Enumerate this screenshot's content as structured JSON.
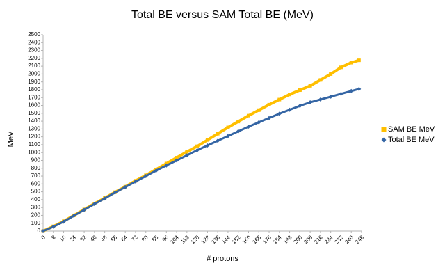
{
  "chart_data": {
    "type": "line",
    "title": "Total BE versus SAM Total BE (MeV)",
    "x_label": "# protons",
    "y_label": "MeV",
    "x": [
      0,
      8,
      16,
      24,
      32,
      40,
      48,
      56,
      64,
      72,
      80,
      88,
      96,
      104,
      112,
      120,
      128,
      136,
      144,
      152,
      160,
      168,
      176,
      184,
      192,
      200,
      208,
      216,
      224,
      232,
      240,
      246
    ],
    "series": [
      {
        "name": "SAM BE MeV",
        "color": "#ffbf00",
        "marker": "square",
        "values": [
          0,
          60,
          125,
          200,
          275,
          350,
          420,
          495,
          565,
          640,
          710,
          785,
          860,
          935,
          1010,
          1080,
          1160,
          1240,
          1320,
          1395,
          1470,
          1540,
          1610,
          1675,
          1740,
          1795,
          1850,
          1925,
          2000,
          2085,
          2145,
          2175
        ]
      },
      {
        "name": "Total BE MeV",
        "color": "#3465a4",
        "marker": "diamond",
        "values": [
          0,
          55,
          120,
          195,
          270,
          345,
          415,
          490,
          560,
          630,
          700,
          770,
          835,
          900,
          965,
          1030,
          1090,
          1150,
          1210,
          1270,
          1330,
          1385,
          1440,
          1495,
          1545,
          1595,
          1640,
          1676,
          1712,
          1748,
          1784,
          1810
        ]
      }
    ],
    "xlim": [
      0,
      248
    ],
    "xticks": [
      0,
      8,
      16,
      24,
      32,
      40,
      48,
      56,
      64,
      72,
      80,
      88,
      96,
      104,
      112,
      120,
      128,
      136,
      144,
      152,
      160,
      168,
      176,
      184,
      192,
      200,
      208,
      216,
      224,
      232,
      240,
      248
    ],
    "ylim": [
      0,
      2500
    ],
    "yticks": [
      0,
      100,
      200,
      300,
      400,
      500,
      600,
      700,
      800,
      900,
      1000,
      1100,
      1200,
      1300,
      1400,
      1500,
      1600,
      1700,
      1800,
      1900,
      2000,
      2100,
      2200,
      2300,
      2400,
      2500
    ],
    "legend": "right",
    "grid": false
  }
}
